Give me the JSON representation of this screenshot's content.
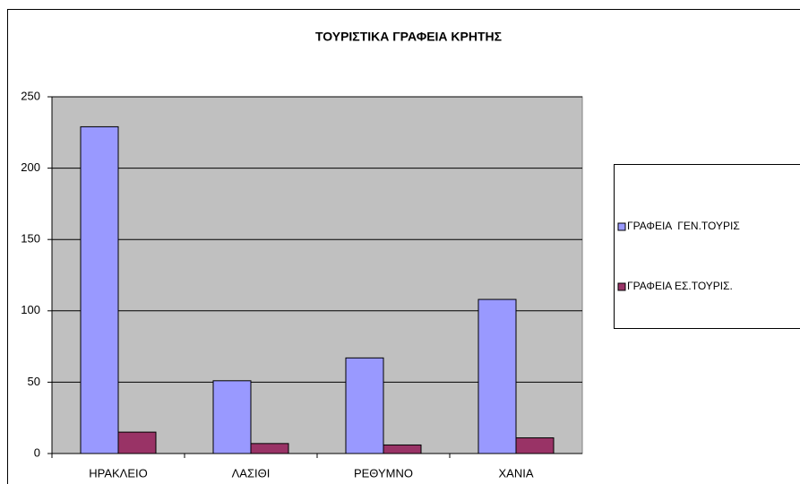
{
  "chart_data": {
    "type": "bar",
    "title": "ΤΟΥΡΙΣΤΙΚΑ ΓΡΑΦΕΙΑ ΚΡΗΤΗΣ",
    "categories": [
      "ΗΡΑΚΛΕΙΟ",
      "ΛΑΣΙΘΙ",
      "ΡΕΘΥΜΝΟ",
      "ΧΑΝΙΑ"
    ],
    "series": [
      {
        "name": "ΓΡΑΦΕΙΑ  ΓΕΝ.ΤΟΥΡΙΣ",
        "color": "#9999ff",
        "values": [
          229,
          51,
          67,
          108
        ]
      },
      {
        "name": "ΓΡΑΦΕΙΑ ΕΣ.ΤΟΥΡΙΣ.",
        "color": "#993366",
        "values": [
          15,
          7,
          6,
          11
        ]
      }
    ],
    "ylim": [
      0,
      250
    ],
    "yticks": [
      0,
      50,
      100,
      150,
      200,
      250
    ],
    "grid": true,
    "legend": "right"
  }
}
